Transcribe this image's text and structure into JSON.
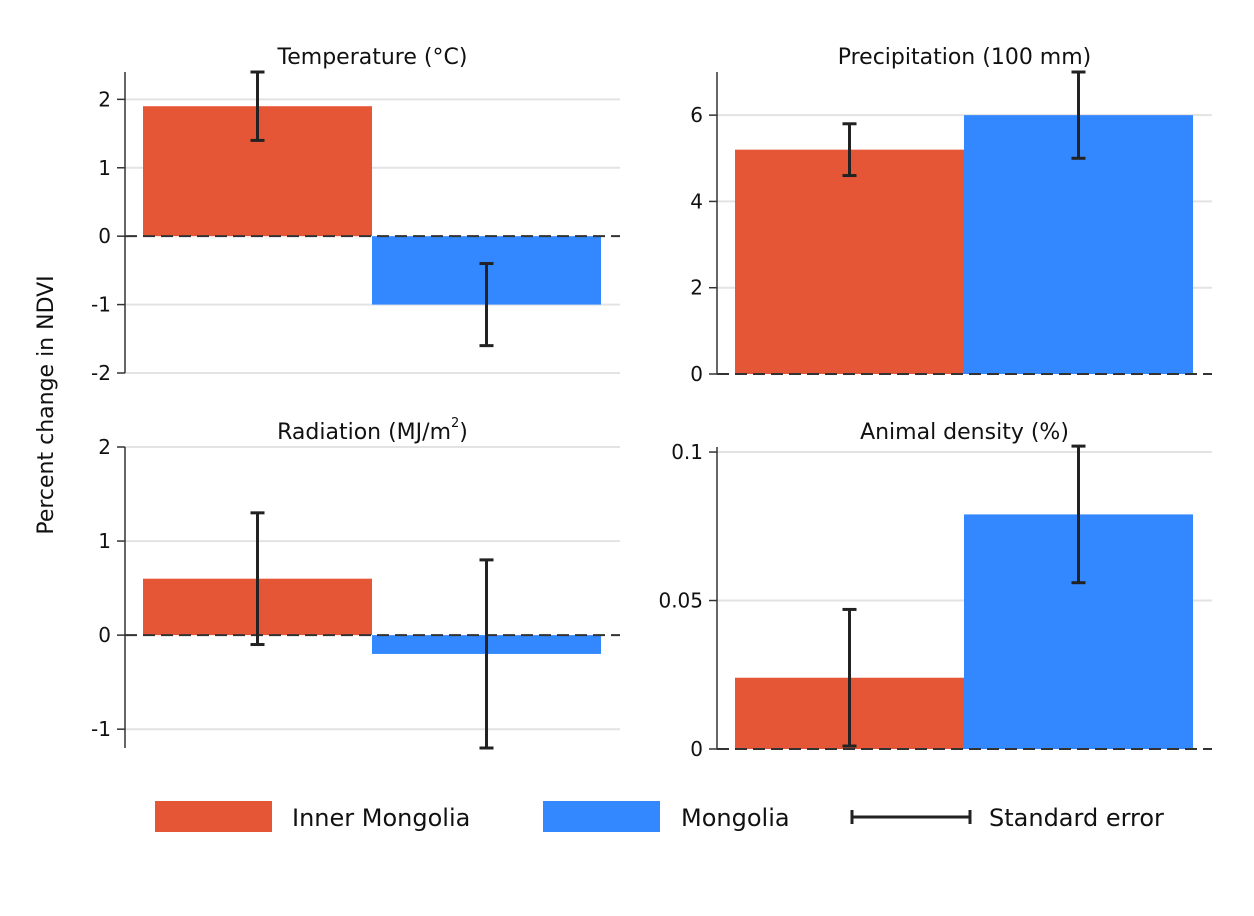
{
  "chart_data": [
    {
      "type": "bar",
      "title": "Temperature (°C)",
      "categories": [
        "Inner Mongolia",
        "Mongolia"
      ],
      "values": [
        1.9,
        -1.0
      ],
      "error_low": [
        1.4,
        -1.6
      ],
      "error_high": [
        2.4,
        -0.4
      ],
      "yticks": [
        2,
        1,
        0,
        -1,
        -2
      ],
      "ytick_labels": [
        "2",
        "1",
        "0",
        "-1",
        "-2"
      ],
      "ylim": [
        -2,
        2.4
      ]
    },
    {
      "type": "bar",
      "title": "Precipitation (100 mm)",
      "categories": [
        "Inner Mongolia",
        "Mongolia"
      ],
      "values": [
        5.2,
        6.0
      ],
      "error_low": [
        4.6,
        5.0
      ],
      "error_high": [
        5.8,
        7.0
      ],
      "yticks": [
        6,
        4,
        2,
        0
      ],
      "ytick_labels": [
        "6",
        "4",
        "2",
        "0"
      ],
      "ylim": [
        0,
        7
      ]
    },
    {
      "type": "bar",
      "title": "Radiation (MJ/m",
      "title_superscript": "2",
      "title_suffix": ")",
      "categories": [
        "Inner Mongolia",
        "Mongolia"
      ],
      "values": [
        0.6,
        -0.2
      ],
      "error_low": [
        -0.1,
        -1.2
      ],
      "error_high": [
        1.3,
        0.8
      ],
      "yticks": [
        2,
        1,
        0,
        -1
      ],
      "ytick_labels": [
        "2",
        "1",
        "0",
        "-1"
      ],
      "ylim": [
        -1.2,
        2
      ]
    },
    {
      "type": "bar",
      "title": "Animal density (%)",
      "categories": [
        "Inner Mongolia",
        "Mongolia"
      ],
      "values": [
        0.024,
        0.079
      ],
      "error_low": [
        0.001,
        0.056
      ],
      "error_high": [
        0.047,
        0.102
      ],
      "yticks": [
        0.1,
        0.05,
        0
      ],
      "ytick_labels": [
        "0.1",
        "0.05",
        "0"
      ],
      "ylim": [
        0,
        0.1017
      ]
    }
  ],
  "ylabel": "Percent change in NDVI",
  "legend": {
    "items": [
      "Inner Mongolia",
      "Mongolia",
      "Standard error"
    ],
    "placement": "bottom"
  },
  "colors": {
    "inner_mongolia": "#E55637",
    "mongolia": "#3388FF",
    "error": "#222222",
    "grid": "#E3E3E3"
  }
}
